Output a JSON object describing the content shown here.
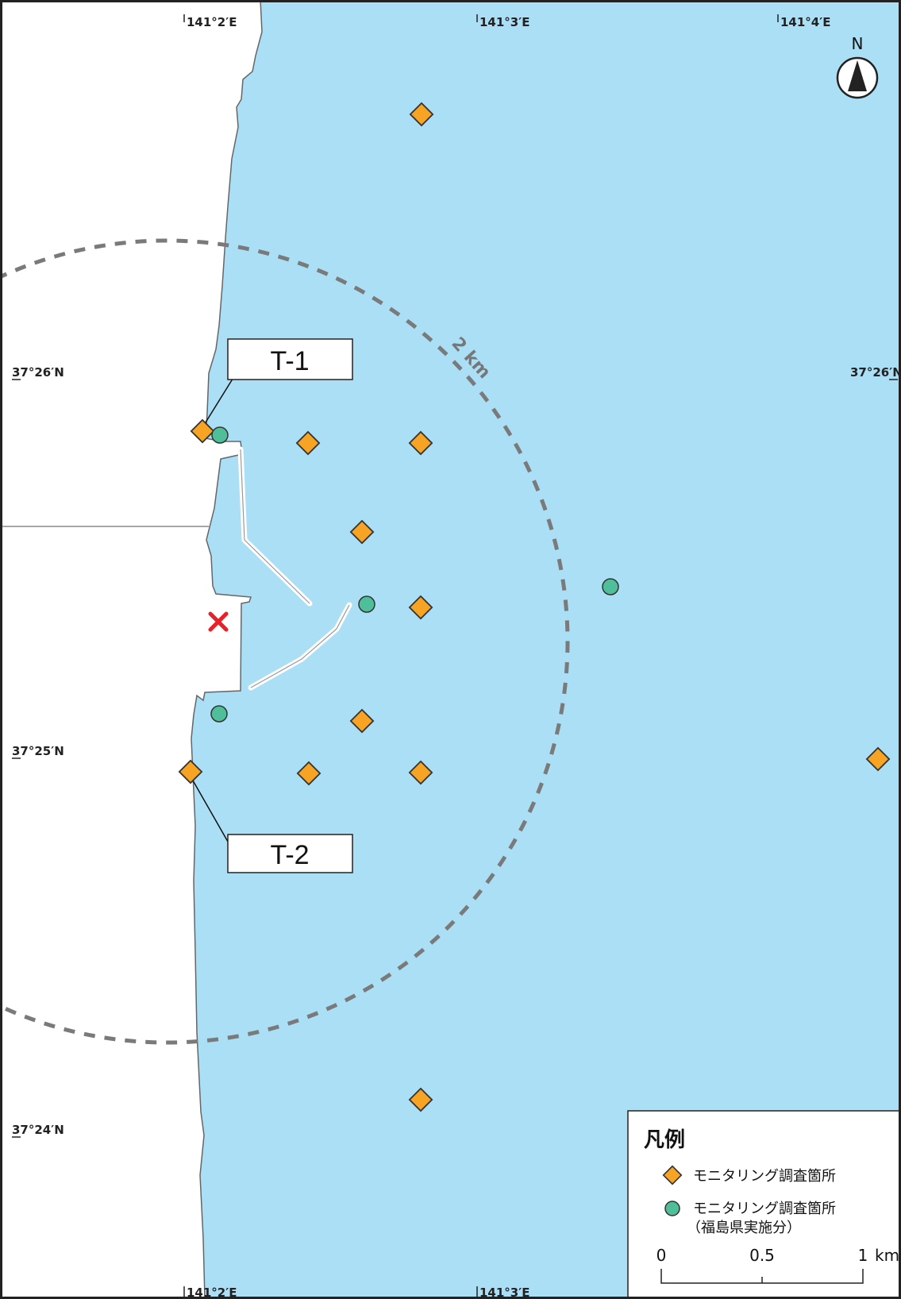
{
  "longitude_labels_top": [
    "141°2′E",
    "141°3′E",
    "141°4′E"
  ],
  "longitude_labels_bottom": [
    "141°2′E",
    "141°3′E"
  ],
  "latitude_labels_left": [
    "37°26′N",
    "37°25′N",
    "37°24′N"
  ],
  "latitude_label_right": "37°26′N",
  "north_arrow": {
    "label": "N",
    "icon": "north-arrow-icon"
  },
  "radius_label": "2 km",
  "callouts": [
    {
      "label": "T-1"
    },
    {
      "label": "T-2"
    }
  ],
  "site_marker": {
    "icon": "red-cross-icon",
    "color": "#e8202a"
  },
  "legend": {
    "title": "凡例",
    "items": [
      {
        "icon": "orange-diamond-icon",
        "color": "#f7a323",
        "label": "モニタリング調査箇所"
      },
      {
        "icon": "green-circle-icon",
        "color": "#4fbf9a",
        "label_line1": "モニタリング調査箇所",
        "label_line2": "（福島県実施分）"
      }
    ],
    "scale": {
      "ticks": [
        "0",
        "0.5",
        "1"
      ],
      "unit": "km"
    }
  },
  "colors": {
    "sea": "#aadff6",
    "land": "#ffffff",
    "coastline": "#666666",
    "diamond_fill": "#f7a323",
    "circle_fill": "#4fbf9a",
    "dashed_circle": "#7a7a7a"
  }
}
